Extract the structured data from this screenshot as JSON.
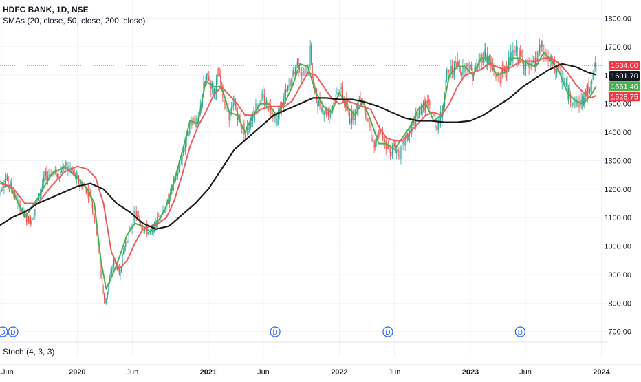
{
  "chart_data": {
    "type": "line",
    "title": "HDFC BANK, 1D, NSE",
    "indicator_label": "SMAs (20, close, 50, close, 200, close)",
    "lower_pane_label": "Stoch (4, 3, 3)",
    "ylim": [
      680,
      1840
    ],
    "y_ticks": [
      "700.00",
      "800.00",
      "900.00",
      "1000.00",
      "1100.00",
      "1200.00",
      "1300.00",
      "1400.00",
      "1500.00",
      "1600.00",
      "1700.00",
      "1800.00"
    ],
    "x_ticks": [
      {
        "label": "Jun",
        "t": 2019.42
      },
      {
        "label": "2020",
        "t": 2020.0
      },
      {
        "label": "Jun",
        "t": 2020.42
      },
      {
        "label": "2021",
        "t": 2021.0
      },
      {
        "label": "Jun",
        "t": 2021.42
      },
      {
        "label": "2022",
        "t": 2022.0
      },
      {
        "label": "Jun",
        "t": 2022.42
      },
      {
        "label": "2023",
        "t": 2023.0
      },
      {
        "label": "Jun",
        "t": 2023.42
      },
      {
        "label": "2024",
        "t": 2024.0
      }
    ],
    "dividend_markers": [
      {
        "label": "D",
        "t": 2019.43
      },
      {
        "label": "D",
        "t": 2019.51
      },
      {
        "label": "D",
        "t": 2021.51
      },
      {
        "label": "D",
        "t": 2022.37
      },
      {
        "label": "D",
        "t": 2023.38
      }
    ],
    "price_path": [
      [
        2019.4,
        1180
      ],
      [
        2019.45,
        1240
      ],
      [
        2019.5,
        1200
      ],
      [
        2019.55,
        1150
      ],
      [
        2019.6,
        1100
      ],
      [
        2019.65,
        1090
      ],
      [
        2019.7,
        1170
      ],
      [
        2019.75,
        1240
      ],
      [
        2019.8,
        1260
      ],
      [
        2019.85,
        1250
      ],
      [
        2019.9,
        1280
      ],
      [
        2019.95,
        1270
      ],
      [
        2020.0,
        1230
      ],
      [
        2020.05,
        1210
      ],
      [
        2020.1,
        1180
      ],
      [
        2020.15,
        1050
      ],
      [
        2020.18,
        900
      ],
      [
        2020.21,
        790
      ],
      [
        2020.24,
        870
      ],
      [
        2020.28,
        950
      ],
      [
        2020.32,
        900
      ],
      [
        2020.36,
        1000
      ],
      [
        2020.4,
        1050
      ],
      [
        2020.44,
        1120
      ],
      [
        2020.48,
        1080
      ],
      [
        2020.52,
        1060
      ],
      [
        2020.56,
        1040
      ],
      [
        2020.6,
        1080
      ],
      [
        2020.64,
        1120
      ],
      [
        2020.68,
        1140
      ],
      [
        2020.72,
        1200
      ],
      [
        2020.76,
        1250
      ],
      [
        2020.8,
        1320
      ],
      [
        2020.84,
        1400
      ],
      [
        2020.88,
        1450
      ],
      [
        2020.92,
        1420
      ],
      [
        2020.96,
        1550
      ],
      [
        2021.0,
        1600
      ],
      [
        2021.04,
        1540
      ],
      [
        2021.08,
        1600
      ],
      [
        2021.12,
        1510
      ],
      [
        2021.16,
        1460
      ],
      [
        2021.2,
        1500
      ],
      [
        2021.24,
        1440
      ],
      [
        2021.28,
        1400
      ],
      [
        2021.32,
        1440
      ],
      [
        2021.36,
        1490
      ],
      [
        2021.4,
        1520
      ],
      [
        2021.44,
        1500
      ],
      [
        2021.48,
        1490
      ],
      [
        2021.52,
        1440
      ],
      [
        2021.56,
        1500
      ],
      [
        2021.6,
        1540
      ],
      [
        2021.64,
        1590
      ],
      [
        2021.68,
        1650
      ],
      [
        2021.72,
        1600
      ],
      [
        2021.76,
        1620
      ],
      [
        2021.78,
        1690
      ],
      [
        2021.8,
        1560
      ],
      [
        2021.84,
        1500
      ],
      [
        2021.88,
        1480
      ],
      [
        2021.92,
        1470
      ],
      [
        2021.96,
        1510
      ],
      [
        2022.0,
        1560
      ],
      [
        2022.04,
        1500
      ],
      [
        2022.08,
        1450
      ],
      [
        2022.12,
        1470
      ],
      [
        2022.16,
        1530
      ],
      [
        2022.2,
        1480
      ],
      [
        2022.24,
        1400
      ],
      [
        2022.27,
        1340
      ],
      [
        2022.3,
        1400
      ],
      [
        2022.34,
        1380
      ],
      [
        2022.38,
        1330
      ],
      [
        2022.42,
        1350
      ],
      [
        2022.46,
        1320
      ],
      [
        2022.5,
        1370
      ],
      [
        2022.54,
        1400
      ],
      [
        2022.58,
        1440
      ],
      [
        2022.62,
        1480
      ],
      [
        2022.66,
        1500
      ],
      [
        2022.7,
        1480
      ],
      [
        2022.74,
        1420
      ],
      [
        2022.78,
        1460
      ],
      [
        2022.82,
        1600
      ],
      [
        2022.86,
        1620
      ],
      [
        2022.9,
        1640
      ],
      [
        2022.94,
        1620
      ],
      [
        2022.98,
        1640
      ],
      [
        2023.02,
        1600
      ],
      [
        2023.06,
        1640
      ],
      [
        2023.1,
        1680
      ],
      [
        2023.14,
        1650
      ],
      [
        2023.18,
        1610
      ],
      [
        2023.22,
        1590
      ],
      [
        2023.26,
        1620
      ],
      [
        2023.3,
        1650
      ],
      [
        2023.34,
        1680
      ],
      [
        2023.38,
        1660
      ],
      [
        2023.42,
        1640
      ],
      [
        2023.46,
        1620
      ],
      [
        2023.5,
        1650
      ],
      [
        2023.54,
        1700
      ],
      [
        2023.58,
        1660
      ],
      [
        2023.62,
        1640
      ],
      [
        2023.66,
        1620
      ],
      [
        2023.7,
        1590
      ],
      [
        2023.74,
        1540
      ],
      [
        2023.78,
        1510
      ],
      [
        2023.82,
        1500
      ],
      [
        2023.86,
        1510
      ],
      [
        2023.9,
        1550
      ],
      [
        2023.94,
        1620
      ],
      [
        2023.96,
        1634.6
      ]
    ],
    "series": [
      {
        "color": "#4caf50",
        "x": [
          2019.4,
          2019.5,
          2019.6,
          2019.7,
          2019.8,
          2019.9,
          2020.0,
          2020.08,
          2020.13,
          2020.18,
          2020.22,
          2020.27,
          2020.32,
          2020.38,
          2020.44,
          2020.5,
          2020.56,
          2020.62,
          2020.68,
          2020.74,
          2020.8,
          2020.86,
          2020.92,
          2020.98,
          2021.04,
          2021.1,
          2021.16,
          2021.22,
          2021.28,
          2021.34,
          2021.4,
          2021.46,
          2021.52,
          2021.58,
          2021.64,
          2021.7,
          2021.76,
          2021.82,
          2021.88,
          2021.94,
          2022.0,
          2022.06,
          2022.12,
          2022.18,
          2022.24,
          2022.3,
          2022.36,
          2022.42,
          2022.48,
          2022.54,
          2022.6,
          2022.66,
          2022.72,
          2022.78,
          2022.84,
          2022.9,
          2022.96,
          2023.02,
          2023.08,
          2023.14,
          2023.2,
          2023.26,
          2023.32,
          2023.38,
          2023.44,
          2023.5,
          2023.56,
          2023.62,
          2023.68,
          2023.74,
          2023.8,
          2023.86,
          2023.92,
          2023.96
        ],
        "values": [
          1230,
          1200,
          1100,
          1170,
          1250,
          1280,
          1240,
          1200,
          1150,
          950,
          850,
          900,
          960,
          1040,
          1080,
          1070,
          1050,
          1090,
          1140,
          1230,
          1330,
          1440,
          1430,
          1580,
          1560,
          1560,
          1470,
          1460,
          1400,
          1460,
          1500,
          1500,
          1460,
          1500,
          1560,
          1640,
          1630,
          1540,
          1490,
          1470,
          1540,
          1490,
          1460,
          1510,
          1440,
          1360,
          1360,
          1340,
          1380,
          1420,
          1480,
          1500,
          1440,
          1460,
          1600,
          1630,
          1630,
          1600,
          1660,
          1660,
          1600,
          1610,
          1660,
          1660,
          1640,
          1630,
          1680,
          1650,
          1610,
          1540,
          1510,
          1500,
          1530,
          1561.4
        ]
      },
      {
        "color": "#f05a5a",
        "x": [
          2019.4,
          2019.5,
          2019.6,
          2019.7,
          2019.8,
          2019.9,
          2020.0,
          2020.08,
          2020.14,
          2020.2,
          2020.26,
          2020.32,
          2020.38,
          2020.44,
          2020.5,
          2020.56,
          2020.62,
          2020.68,
          2020.74,
          2020.8,
          2020.86,
          2020.92,
          2020.98,
          2021.04,
          2021.1,
          2021.16,
          2021.22,
          2021.28,
          2021.34,
          2021.4,
          2021.46,
          2021.52,
          2021.58,
          2021.64,
          2021.7,
          2021.76,
          2021.82,
          2021.88,
          2021.94,
          2022.0,
          2022.06,
          2022.12,
          2022.18,
          2022.24,
          2022.3,
          2022.36,
          2022.42,
          2022.48,
          2022.54,
          2022.6,
          2022.66,
          2022.72,
          2022.78,
          2022.84,
          2022.9,
          2022.96,
          2023.02,
          2023.08,
          2023.14,
          2023.2,
          2023.26,
          2023.32,
          2023.38,
          2023.44,
          2023.5,
          2023.56,
          2023.62,
          2023.68,
          2023.74,
          2023.8,
          2023.86,
          2023.92,
          2023.96
        ],
        "values": [
          1220,
          1210,
          1150,
          1150,
          1210,
          1260,
          1280,
          1270,
          1240,
          1150,
          980,
          920,
          950,
          1010,
          1060,
          1070,
          1080,
          1100,
          1160,
          1250,
          1350,
          1420,
          1470,
          1530,
          1560,
          1530,
          1500,
          1460,
          1460,
          1480,
          1490,
          1490,
          1490,
          1510,
          1560,
          1610,
          1600,
          1560,
          1520,
          1500,
          1510,
          1500,
          1490,
          1480,
          1420,
          1380,
          1370,
          1370,
          1400,
          1430,
          1460,
          1470,
          1460,
          1500,
          1560,
          1600,
          1610,
          1620,
          1640,
          1630,
          1620,
          1630,
          1650,
          1650,
          1650,
          1660,
          1660,
          1640,
          1610,
          1570,
          1540,
          1520,
          1528.75
        ]
      },
      {
        "color": "#1c1c1c",
        "x": [
          2019.4,
          2019.5,
          2019.6,
          2019.7,
          2019.8,
          2019.9,
          2020.0,
          2020.1,
          2020.2,
          2020.3,
          2020.4,
          2020.5,
          2020.6,
          2020.7,
          2020.8,
          2020.9,
          2021.0,
          2021.1,
          2021.2,
          2021.3,
          2021.4,
          2021.5,
          2021.6,
          2021.7,
          2021.8,
          2021.9,
          2022.0,
          2022.1,
          2022.2,
          2022.3,
          2022.4,
          2022.5,
          2022.6,
          2022.7,
          2022.8,
          2022.9,
          2023.0,
          2023.1,
          2023.2,
          2023.3,
          2023.4,
          2023.5,
          2023.6,
          2023.7,
          2023.8,
          2023.9,
          2023.96
        ],
        "values": [
          1070,
          1100,
          1120,
          1150,
          1170,
          1190,
          1210,
          1220,
          1200,
          1150,
          1120,
          1080,
          1060,
          1070,
          1110,
          1150,
          1200,
          1270,
          1340,
          1380,
          1420,
          1460,
          1480,
          1500,
          1520,
          1520,
          1515,
          1515,
          1505,
          1490,
          1470,
          1450,
          1440,
          1440,
          1435,
          1435,
          1440,
          1460,
          1490,
          1520,
          1560,
          1590,
          1620,
          1640,
          1630,
          1610,
          1601.7
        ]
      }
    ],
    "price_labels": [
      {
        "text": "1634.60",
        "value": 1634.6,
        "color": "#f23645",
        "text_color": "#ffffff"
      },
      {
        "text": "1601.70",
        "value": 1601.7,
        "color": "#131722",
        "text_color": "#ffffff"
      },
      {
        "text": "1561.40",
        "value": 1561.4,
        "color": "#4caf50",
        "text_color": "#ffffff"
      },
      {
        "text": "1528.75",
        "value": 1528.75,
        "color": "#f23645",
        "text_color": "#ffffff"
      }
    ],
    "last_price": 1634.6,
    "colors": {
      "up": "#26a69a",
      "down": "#ef5350",
      "grid": "#f0f3fa",
      "axis_text": "#131722",
      "dividend": "#2962ff"
    }
  }
}
